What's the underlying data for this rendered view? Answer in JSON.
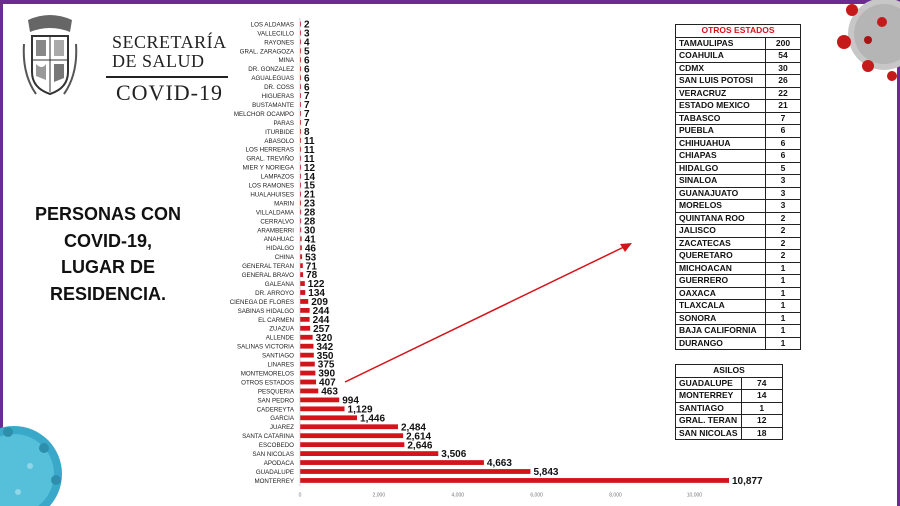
{
  "header": {
    "line1": "SECRETARÍA",
    "line2": "DE SALUD",
    "line3": "COVID-19"
  },
  "side_title": [
    "PERSONAS CON",
    "COVID-19,",
    "LUGAR DE",
    "RESIDENCIA."
  ],
  "colors": {
    "bar": "#d4141b",
    "frame": "#6a2c91",
    "arrow": "#d4141b"
  },
  "chart_data": {
    "type": "bar",
    "orientation": "horizontal",
    "categories": [
      "LOS ALDAMAS",
      "VALLECILLO",
      "RAYONES",
      "GRAL. ZARAGOZA",
      "MINA",
      "DR. GONZALEZ",
      "AGUALEGUAS",
      "DR. COSS",
      "HIGUERAS",
      "BUSTAMANTE",
      "MELCHOR OCAMPO",
      "PARAS",
      "ITURBIDE",
      "ABASOLO",
      "LOS HERRERAS",
      "GRAL. TREVIÑO",
      "MIER Y NORIEGA",
      "LAMPAZOS",
      "LOS RAMONES",
      "HUALAHUISES",
      "MARIN",
      "VILLALDAMA",
      "CERRALVO",
      "ARAMBERRI",
      "ANAHUAC",
      "HIDALGO",
      "CHINA",
      "GENERAL TERAN",
      "GENERAL BRAVO",
      "GALEANA",
      "DR. ARROYO",
      "CIENEGA DE FLORES",
      "SABINAS HIDALGO",
      "EL CARMEN",
      "ZUAZUA",
      "ALLENDE",
      "SALINAS VICTORIA",
      "SANTIAGO",
      "LINARES",
      "MONTEMORELOS",
      "OTROS ESTADOS",
      "PESQUERIA",
      "SAN PEDRO",
      "CADEREYTA",
      "GARCIA",
      "JUAREZ",
      "SANTA CATARINA",
      "ESCOBEDO",
      "SAN NICOLAS",
      "APODACA",
      "GUADALUPE",
      "MONTERREY"
    ],
    "values": [
      2,
      3,
      4,
      5,
      6,
      6,
      6,
      6,
      7,
      7,
      7,
      7,
      8,
      11,
      11,
      11,
      12,
      14,
      15,
      21,
      23,
      28,
      28,
      30,
      41,
      46,
      53,
      71,
      78,
      122,
      134,
      209,
      244,
      244,
      257,
      320,
      342,
      350,
      375,
      390,
      407,
      463,
      994,
      1129,
      1446,
      2484,
      2614,
      2646,
      3506,
      4663,
      5843,
      10877
    ],
    "value_labels": [
      "2",
      "3",
      "4",
      "5",
      "6",
      "6",
      "6",
      "6",
      "7",
      "7",
      "7",
      "7",
      "8",
      "11",
      "11",
      "11",
      "12",
      "14",
      "15",
      "21",
      "23",
      "28",
      "28",
      "30",
      "41",
      "46",
      "53",
      "71",
      "78",
      "122",
      "134",
      "209",
      "244",
      "244",
      "257",
      "320",
      "342",
      "350",
      "375",
      "390",
      "407",
      "463",
      "994",
      "1,129",
      "1,446",
      "2,484",
      "2,614",
      "2,646",
      "3,506",
      "4,663",
      "5,843",
      "10,877"
    ],
    "xticks": [
      "0",
      "2,000",
      "4,000",
      "6,000",
      "8,000",
      "10,000"
    ],
    "xlim": [
      0,
      11000
    ],
    "grid": false,
    "legend": "none"
  },
  "otros_estados": {
    "title": "OTROS ESTADOS",
    "rows": [
      [
        "TAMAULIPAS",
        "200"
      ],
      [
        "COAHUILA",
        "54"
      ],
      [
        "CDMX",
        "30"
      ],
      [
        "SAN LUIS POTOSI",
        "26"
      ],
      [
        "VERACRUZ",
        "22"
      ],
      [
        "ESTADO MEXICO",
        "21"
      ],
      [
        "TABASCO",
        "7"
      ],
      [
        "PUEBLA",
        "6"
      ],
      [
        "CHIHUAHUA",
        "6"
      ],
      [
        "CHIAPAS",
        "6"
      ],
      [
        "HIDALGO",
        "5"
      ],
      [
        "SINALOA",
        "3"
      ],
      [
        "GUANAJUATO",
        "3"
      ],
      [
        "MORELOS",
        "3"
      ],
      [
        "QUINTANA ROO",
        "2"
      ],
      [
        "JALISCO",
        "2"
      ],
      [
        "ZACATECAS",
        "2"
      ],
      [
        "QUERETARO",
        "2"
      ],
      [
        "MICHOACAN",
        "1"
      ],
      [
        "GUERRERO",
        "1"
      ],
      [
        "OAXACA",
        "1"
      ],
      [
        "TLAXCALA",
        "1"
      ],
      [
        "SONORA",
        "1"
      ],
      [
        "BAJA CALIFORNIA",
        "1"
      ],
      [
        "DURANGO",
        "1"
      ]
    ]
  },
  "asilos": {
    "title": "ASILOS",
    "rows": [
      [
        "GUADALUPE",
        "74"
      ],
      [
        "MONTERREY",
        "14"
      ],
      [
        "SANTIAGO",
        "1"
      ],
      [
        "GRAL. TERAN",
        "12"
      ],
      [
        "SAN NICOLAS",
        "18"
      ]
    ]
  }
}
